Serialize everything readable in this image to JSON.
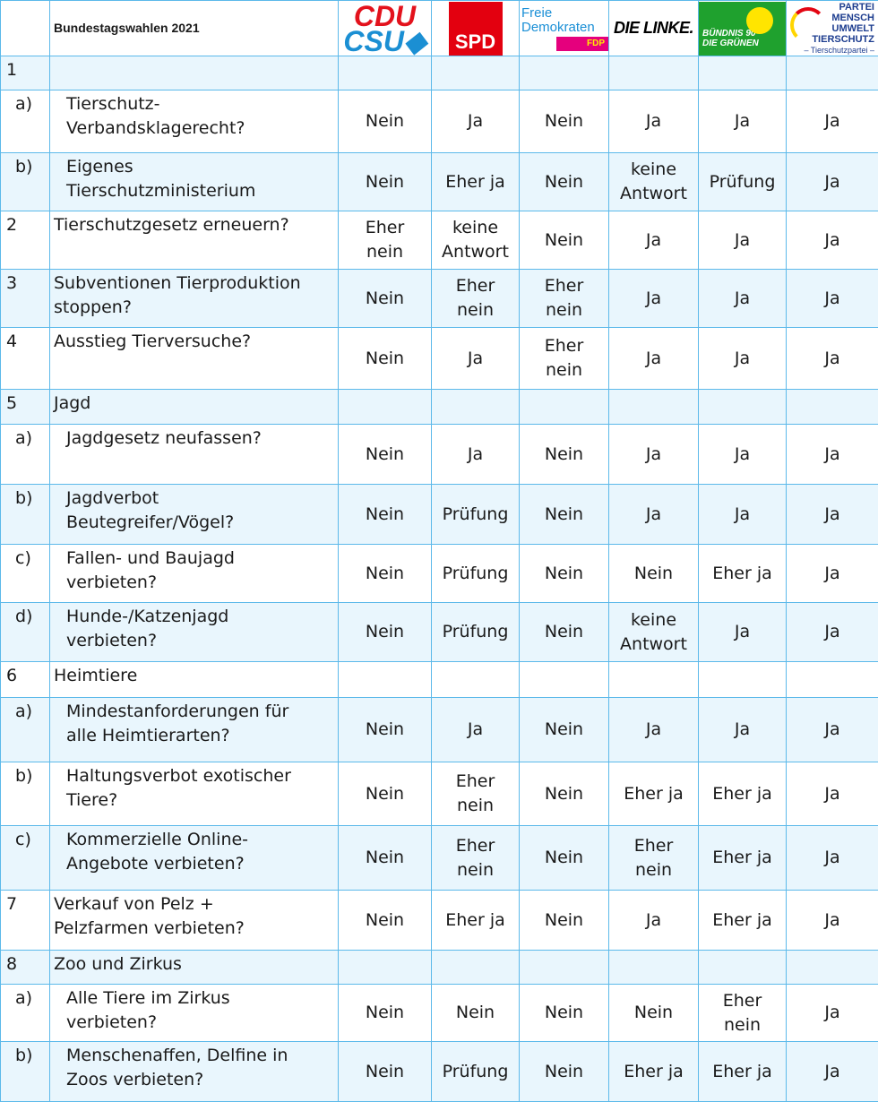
{
  "header": {
    "title": "Bundestagswahlen 2021",
    "parties": [
      "CDU/CSU",
      "SPD",
      "Freie Demokraten FDP",
      "DIE LINKE.",
      "BÜNDNIS 90 DIE GRÜNEN",
      "PARTEI MENSCH UMWELT TIERSCHUTZ – Tierschutzpartei –"
    ]
  },
  "colors": {
    "border": "#5cb9ea",
    "alt_row": "#e9f6fd",
    "cdu_red": "#e3121c",
    "csu_blue": "#1b8fd3",
    "spd_red": "#e3000f",
    "fdp_magenta": "#e5007d",
    "gruene_green": "#1fa12e"
  },
  "rows": [
    {
      "num": "1",
      "q": "",
      "sub": false,
      "h": 38,
      "a": [
        "",
        "",
        "",
        "",
        "",
        ""
      ]
    },
    {
      "num": "a)",
      "q": "Tierschutz-\nVerbandsklagerecht?",
      "sub": true,
      "h": 70,
      "a": [
        "Nein",
        "Ja",
        "Nein",
        "Ja",
        "Ja",
        "Ja"
      ]
    },
    {
      "num": "b)",
      "q": "Eigenes\nTierschutzministerium",
      "sub": true,
      "h": 65,
      "a": [
        "Nein",
        "Eher ja",
        "Nein",
        "keine\nAntwort",
        "Prüfung",
        "Ja"
      ]
    },
    {
      "num": "2",
      "q": "Tierschutzgesetz erneuern?",
      "sub": false,
      "h": 65,
      "a": [
        "Eher\nnein",
        "keine\nAntwort",
        "Nein",
        "Ja",
        "Ja",
        "Ja"
      ]
    },
    {
      "num": "3",
      "q": "Subventionen Tierproduktion\nstoppen?",
      "sub": false,
      "h": 65,
      "a": [
        "Nein",
        "Eher\nnein",
        "Eher\nnein",
        "Ja",
        "Ja",
        "Ja"
      ]
    },
    {
      "num": "4",
      "q": "Ausstieg Tierversuche?",
      "sub": false,
      "h": 69,
      "a": [
        "Nein",
        "Ja",
        "Eher\nnein",
        "Ja",
        "Ja",
        "Ja"
      ]
    },
    {
      "num": "5",
      "q": "Jagd",
      "sub": false,
      "h": 39,
      "a": [
        "",
        "",
        "",
        "",
        "",
        ""
      ]
    },
    {
      "num": "a)",
      "q": "Jagdgesetz neufassen?",
      "sub": true,
      "h": 67,
      "a": [
        "Nein",
        "Ja",
        "Nein",
        "Ja",
        "Ja",
        "Ja"
      ]
    },
    {
      "num": "b)",
      "q": "Jagdverbot\nBeutegreifer/Vögel?",
      "sub": true,
      "h": 67,
      "a": [
        "Nein",
        "Prüfung",
        "Nein",
        "Ja",
        "Ja",
        "Ja"
      ]
    },
    {
      "num": "c)",
      "q": "Fallen- und Baujagd\nverbieten?",
      "sub": true,
      "h": 65,
      "a": [
        "Nein",
        "Prüfung",
        "Nein",
        "Nein",
        "Eher ja",
        "Ja"
      ]
    },
    {
      "num": "d)",
      "q": "Hunde-/Katzenjagd\nverbieten?",
      "sub": true,
      "h": 66,
      "a": [
        "Nein",
        "Prüfung",
        "Nein",
        "keine\nAntwort",
        "Ja",
        "Ja"
      ]
    },
    {
      "num": "6",
      "q": "Heimtiere",
      "sub": false,
      "h": 40,
      "a": [
        "",
        "",
        "",
        "",
        "",
        ""
      ]
    },
    {
      "num": "a)",
      "q": "Mindestanforderungen für\nalle Heimtierarten?",
      "sub": true,
      "h": 72,
      "a": [
        "Nein",
        "Ja",
        "Nein",
        "Ja",
        "Ja",
        "Ja"
      ]
    },
    {
      "num": "b)",
      "q": "Haltungsverbot exotischer\nTiere?",
      "sub": true,
      "h": 71,
      "a": [
        "Nein",
        "Eher\nnein",
        "Nein",
        "Eher ja",
        "Eher ja",
        "Ja"
      ]
    },
    {
      "num": "c)",
      "q": "Kommerzielle Online-\nAngebote verbieten?",
      "sub": true,
      "h": 72,
      "a": [
        "Nein",
        "Eher\nnein",
        "Nein",
        "Eher\nnein",
        "Eher ja",
        "Ja"
      ]
    },
    {
      "num": "7",
      "q": "Verkauf von Pelz +\nPelzfarmen verbieten?",
      "sub": false,
      "h": 67,
      "a": [
        "Nein",
        "Eher ja",
        "Nein",
        "Ja",
        "Eher ja",
        "Ja"
      ]
    },
    {
      "num": "8",
      "q": "Zoo und Zirkus",
      "sub": false,
      "h": 38,
      "a": [
        "",
        "",
        "",
        "",
        "",
        ""
      ]
    },
    {
      "num": "a)",
      "q": "Alle Tiere im Zirkus\nverbieten?",
      "sub": true,
      "h": 64,
      "a": [
        "Nein",
        "Nein",
        "Nein",
        "Nein",
        "Eher\nnein",
        "Ja"
      ]
    },
    {
      "num": "b)",
      "q": "Menschenaffen, Delfine in\nZoos verbieten?",
      "sub": true,
      "h": 67,
      "a": [
        "Nein",
        "Prüfung",
        "Nein",
        "Eher ja",
        "Eher ja",
        "Ja"
      ]
    }
  ]
}
